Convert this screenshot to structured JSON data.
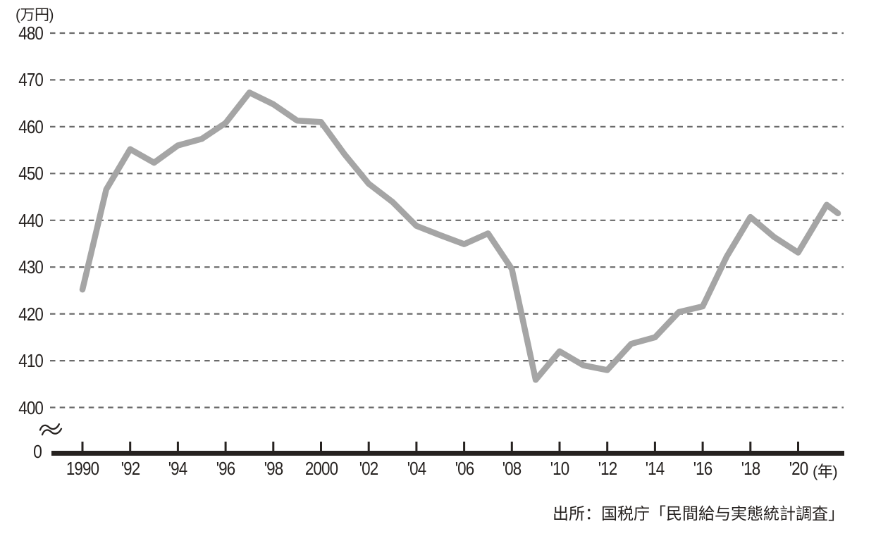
{
  "chart": {
    "unit_label": "(万円)",
    "zero_label": "0",
    "year_suffix_label": "(年)",
    "source_label": "出所：国税庁「民間給与実態統計調査」",
    "y_axis": {
      "ticks": [
        480,
        470,
        460,
        450,
        440,
        430,
        420,
        410,
        400
      ]
    },
    "x_axis": {
      "tick_years": [
        1990,
        1992,
        1994,
        1996,
        1998,
        2000,
        2002,
        2004,
        2006,
        2008,
        2010,
        2012,
        2014,
        2016,
        2018,
        2020
      ],
      "tick_labels": [
        "1990",
        "'92",
        "'94",
        "'96",
        "'98",
        "2000",
        "'02",
        "'04",
        "'06",
        "'08",
        "'10",
        "'12",
        "'14",
        "'16",
        "'18",
        "'20"
      ]
    },
    "colors": {
      "ink": "#262220",
      "grid": "#6a6a6a",
      "line": "#a5a5a5"
    }
  },
  "chart_data": {
    "type": "line",
    "title": "",
    "xlabel": "(年)",
    "ylabel": "(万円)",
    "x": [
      1990,
      1991,
      1992,
      1993,
      1994,
      1995,
      1996,
      1997,
      1998,
      1999,
      2000,
      2001,
      2002,
      2003,
      2004,
      2005,
      2006,
      2007,
      2008,
      2009,
      2010,
      2011,
      2012,
      2013,
      2014,
      2015,
      2016,
      2017,
      2018,
      2019,
      2020,
      2021,
      2022
    ],
    "values": [
      425.2,
      446.6,
      455.2,
      452.3,
      456.0,
      457.4,
      460.8,
      467.3,
      464.8,
      461.3,
      461.0,
      454.0,
      447.8,
      443.9,
      438.8,
      436.8,
      434.9,
      437.2,
      429.6,
      405.9,
      412.0,
      409.0,
      408.0,
      413.6,
      415.0,
      420.4,
      421.6,
      432.2,
      440.7,
      436.4,
      433.1,
      443.3,
      441.5
    ],
    "x_tick_labels": [
      "1990",
      "'92",
      "'94",
      "'96",
      "'98",
      "2000",
      "'02",
      "'04",
      "'06",
      "'08",
      "'10",
      "'12",
      "'14",
      "'16",
      "'18",
      "'20"
    ],
    "y_tick_labels": [
      "480",
      "470",
      "460",
      "450",
      "440",
      "430",
      "420",
      "410",
      "400",
      "0"
    ],
    "ylim_displayed": [
      400,
      480
    ],
    "y_axis_break_to_zero": true,
    "grid": "horizontal-dashed",
    "legend": "none",
    "source": "出所：国税庁「民間給与実態統計調査」"
  }
}
